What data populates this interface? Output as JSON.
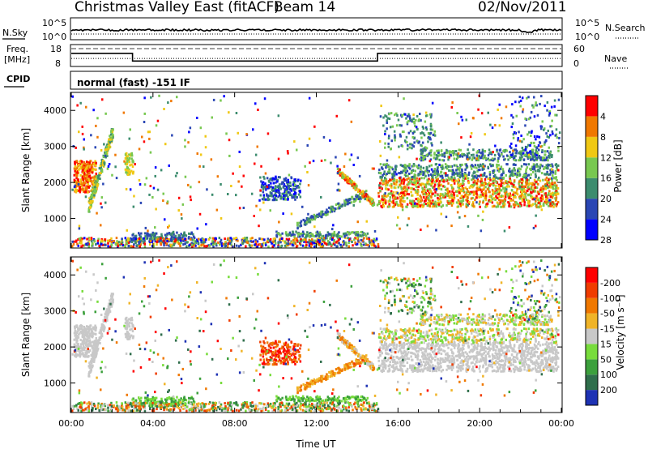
{
  "header": {
    "station": "Christmas Valley East (fitACF)",
    "beam": "Beam 14",
    "date": "02/Nov/2011"
  },
  "noise_panel": {
    "left_label": "N.Sky",
    "right_label": "N.Search",
    "left_ticks": [
      "10^5",
      "10^0"
    ],
    "right_ticks": [
      "10^5",
      "10^0"
    ]
  },
  "freq_panel": {
    "left_label_1": "Freq.",
    "left_label_2": "[MHz]",
    "left_ticks": [
      "18",
      "8"
    ],
    "right_label": "Nave",
    "right_ticks": [
      "60",
      "0"
    ]
  },
  "cpid_panel": {
    "label": "CPID",
    "text": "normal (fast) -151 IF"
  },
  "chart_data": [
    {
      "type": "line",
      "title": "",
      "xlabel": "",
      "ylabel": "N.Sky",
      "x_hours": [
        0,
        24
      ],
      "series": [
        {
          "name": "N.Sky",
          "approx_level": "10^4"
        },
        {
          "name": "N.Search",
          "approx_level": "10^2"
        }
      ]
    },
    {
      "type": "line",
      "title": "",
      "ylabel": "Freq. [MHz]",
      "y2label": "Nave",
      "ylim": [
        8,
        18
      ],
      "y2lim": [
        0,
        60
      ],
      "series": [
        {
          "name": "Freq.",
          "x_hours": [
            0,
            3,
            3,
            15,
            15,
            24
          ],
          "y": [
            14,
            14,
            10.5,
            10.5,
            14,
            14
          ]
        },
        {
          "name": "Nave",
          "x_hours": [
            0,
            24
          ],
          "y": [
            22,
            22
          ]
        }
      ]
    },
    {
      "type": "heatmap",
      "title": "",
      "xlabel": "",
      "ylabel": "Slant Range [km]",
      "ylim": [
        180,
        4500
      ],
      "yticks": [
        1000,
        2000,
        3000,
        4000
      ],
      "colorbar": {
        "label": "Power [dB]",
        "ticks": [
          "4",
          "8",
          "12",
          "16",
          "20",
          "24",
          "28"
        ],
        "colors": [
          "#0000ff",
          "#2a46b4",
          "#3c8c6e",
          "#78c850",
          "#f0c814",
          "#f07800",
          "#ff0000"
        ]
      }
    },
    {
      "type": "heatmap",
      "title": "",
      "xlabel": "Time UT",
      "ylabel": "Slant Range [km]",
      "ylim": [
        180,
        4500
      ],
      "yticks": [
        1000,
        2000,
        3000,
        4000
      ],
      "xticks": [
        "00:00",
        "04:00",
        "08:00",
        "12:00",
        "16:00",
        "20:00",
        "00:00"
      ],
      "colorbar": {
        "label": "Velocity [m s⁻¹]",
        "ticks": [
          "200",
          "100",
          "50",
          "15",
          "-15",
          "-50",
          "-100",
          "-200"
        ],
        "colors": [
          "#1e32b4",
          "#2f6e4b",
          "#3ca03c",
          "#78dc3c",
          "#c8c8c8",
          "#f0b428",
          "#f07800",
          "#f03c00",
          "#ff0000"
        ]
      }
    }
  ]
}
